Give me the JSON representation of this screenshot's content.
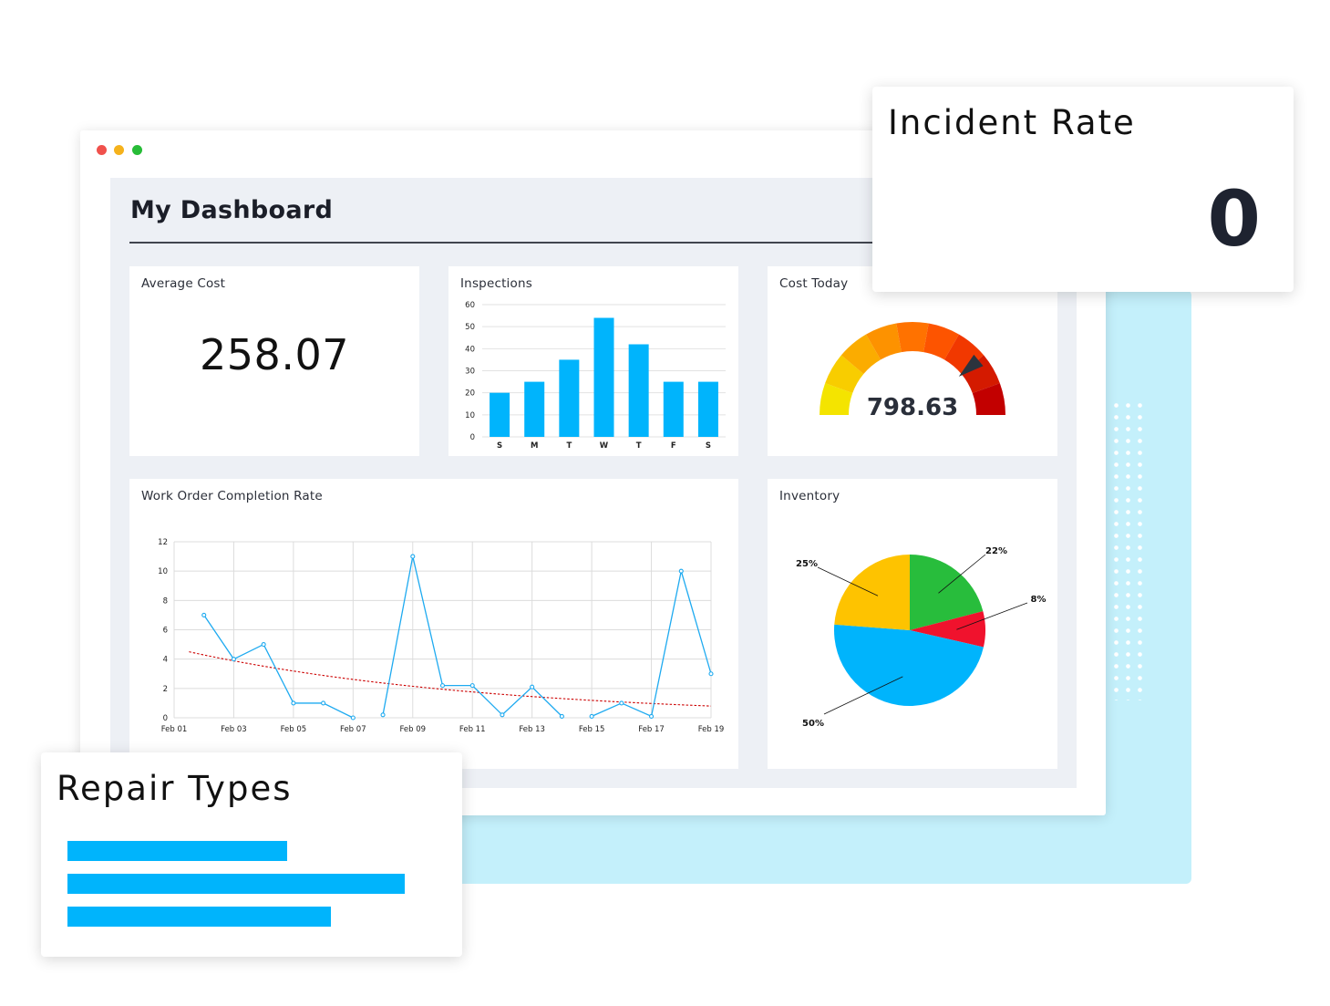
{
  "dashboard": {
    "title": "My Dashboard"
  },
  "average_cost": {
    "title": "Average Cost",
    "value": "258.07"
  },
  "inspections": {
    "title": "Inspections"
  },
  "cost_today": {
    "title": "Cost Today",
    "value": "798.63",
    "gauge_fraction": 0.78
  },
  "work_orders": {
    "title": "Work Order Completion Rate"
  },
  "inventory": {
    "title": "Inventory"
  },
  "incident_rate": {
    "title": "Incident Rate",
    "value": "0"
  },
  "repair_types": {
    "title": "Repair Types",
    "bars": [
      0.65,
      1.0,
      0.78
    ]
  },
  "colors": {
    "accent_blue": "#00b4fc",
    "window_lights": [
      "#f0514c",
      "#f5b21c",
      "#27bc37"
    ],
    "backdrop": "#c4f0fb"
  },
  "chart_data": [
    {
      "type": "bar",
      "categories": [
        "S",
        "M",
        "T",
        "W",
        "T",
        "F",
        "S"
      ],
      "values": [
        20,
        25,
        35,
        54,
        42,
        25,
        25
      ],
      "ylim": [
        0,
        60
      ],
      "yticks": [
        0,
        10,
        20,
        30,
        40,
        50,
        60
      ],
      "grid": true,
      "color": "#00b4fc"
    },
    {
      "type": "line",
      "title": "Work Order Completion Rate",
      "x": [
        "Feb 01",
        "Feb 02",
        "Feb 03",
        "Feb 04",
        "Feb 05",
        "Feb 06",
        "Feb 07",
        "Feb 08",
        "Feb 09",
        "Feb 10",
        "Feb 11",
        "Feb 12",
        "Feb 13",
        "Feb 14",
        "Feb 15",
        "Feb 16",
        "Feb 17",
        "Feb 18",
        "Feb 19"
      ],
      "x_tick_labels": [
        "Feb 01",
        "Feb 03",
        "Feb 05",
        "Feb 07",
        "Feb 09",
        "Feb 11",
        "Feb 13",
        "Feb 15",
        "Feb 17",
        "Feb 19"
      ],
      "series": [
        {
          "values": [
            null,
            7,
            4,
            5,
            1,
            1,
            0,
            0.2,
            11,
            2.2,
            2.2,
            0.2,
            2.1,
            0.1,
            0.1,
            1,
            0.1,
            10,
            3
          ]
        }
      ],
      "trendline": {
        "start": [
          1.5,
          4.5
        ],
        "end": [
          19,
          0.8
        ],
        "color": "#cc0000",
        "style": "dotted"
      },
      "ylim": [
        0,
        12
      ],
      "yticks": [
        0,
        2,
        4,
        6,
        8,
        10,
        12
      ],
      "grid": true,
      "color": "#1eaaf0"
    },
    {
      "type": "pie",
      "slices": [
        {
          "label": "22%",
          "value": 22,
          "color": "#28bd3c"
        },
        {
          "label": "8%",
          "value": 8,
          "color": "#f0122d"
        },
        {
          "label": "50%",
          "value": 50,
          "color": "#00b4fc"
        },
        {
          "label": "25%",
          "value": 25,
          "color": "#fec300"
        }
      ]
    }
  ]
}
